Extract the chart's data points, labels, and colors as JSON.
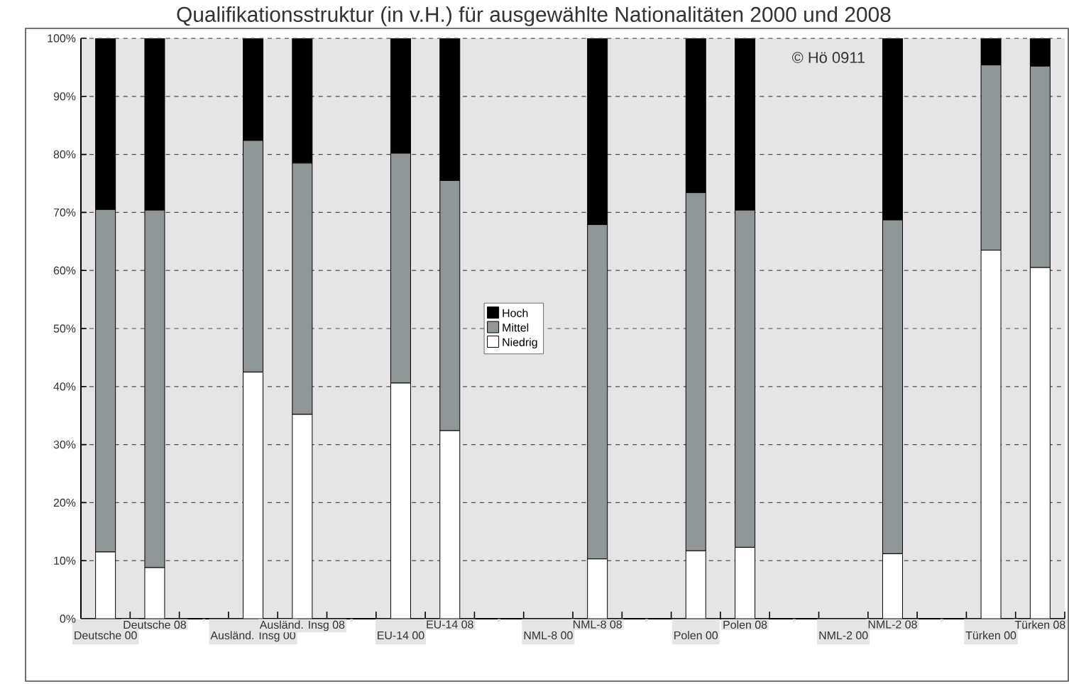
{
  "chart_data": {
    "type": "bar",
    "stacked": true,
    "title": "Qualifikationsstruktur (in v.H.) für ausgewählte Nationalitäten 2000 und 2008",
    "categories": [
      "Deutsche 00",
      "Deutsche 08",
      null,
      "Ausländ. Insg 00",
      "Ausländ. Insg 08",
      null,
      "EU-14 00",
      "EU-14 08",
      null,
      "NML-8 00",
      "NML-8 08",
      null,
      "Polen 00",
      "Polen 08",
      null,
      "NML-2 00",
      "NML-2 08",
      null,
      "Türken 00",
      "Türken 08"
    ],
    "series": [
      {
        "name": "Niedrig",
        "color": "#ffffff",
        "values": [
          11.5,
          8.8,
          null,
          42.5,
          35.2,
          null,
          40.6,
          32.4,
          null,
          null,
          10.3,
          null,
          11.7,
          12.3,
          null,
          null,
          11.2,
          null,
          63.5,
          60.5
        ]
      },
      {
        "name": "Mittel",
        "color": "#909598",
        "values": [
          59.0,
          61.6,
          null,
          39.9,
          43.3,
          null,
          39.6,
          43.1,
          null,
          null,
          57.6,
          null,
          61.7,
          58.1,
          null,
          null,
          57.5,
          null,
          31.9,
          34.7
        ]
      },
      {
        "name": "Hoch",
        "color": "#000000",
        "values": [
          29.5,
          29.6,
          null,
          17.6,
          21.5,
          null,
          19.8,
          24.5,
          null,
          null,
          32.1,
          null,
          26.6,
          29.6,
          null,
          null,
          31.3,
          null,
          4.6,
          4.8
        ]
      }
    ],
    "ylim": [
      0,
      100
    ],
    "yticks": [
      {
        "value": 0,
        "label": "0%"
      },
      {
        "value": 10,
        "label": "10%"
      },
      {
        "value": 20,
        "label": "20%"
      },
      {
        "value": 30,
        "label": "30%"
      },
      {
        "value": 40,
        "label": "40%"
      },
      {
        "value": 50,
        "label": "50%"
      },
      {
        "value": 60,
        "label": "60%"
      },
      {
        "value": 70,
        "label": "70%"
      },
      {
        "value": 80,
        "label": "80%"
      },
      {
        "value": 90,
        "label": "90%"
      },
      {
        "value": 100,
        "label": "100%"
      }
    ],
    "grid": "y",
    "legend": "center",
    "annotations": [
      "© Hö 0911"
    ]
  }
}
